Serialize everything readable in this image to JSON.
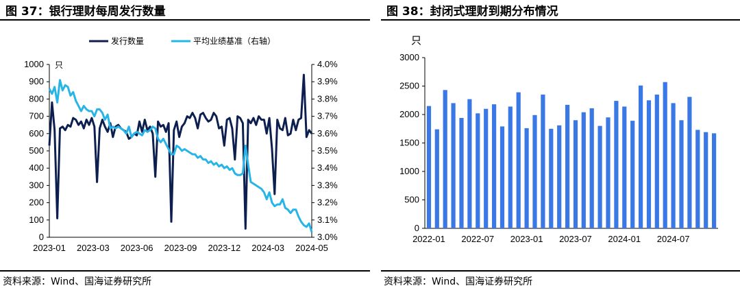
{
  "left": {
    "title": "图 37：银行理财每周发行数量",
    "source": "资料来源：Wind、国海证券研究所",
    "chart_data": {
      "type": "line",
      "ylabel": "只",
      "ylim": [
        0,
        1000
      ],
      "yticks": [
        "0",
        "100",
        "200",
        "300",
        "400",
        "500",
        "600",
        "700",
        "800",
        "900",
        "1000"
      ],
      "y2lim": [
        3.0,
        4.0
      ],
      "y2ticks": [
        "3.0%",
        "3.1%",
        "3.2%",
        "3.3%",
        "3.4%",
        "3.5%",
        "3.6%",
        "3.7%",
        "3.8%",
        "3.9%",
        "4.0%"
      ],
      "xticks": [
        "2023-01",
        "2023-03",
        "2023-06",
        "2023-09",
        "2023-12",
        "2024-03",
        "2024-05"
      ],
      "series": [
        {
          "name": "发行数量",
          "axis": "left",
          "color": "#0d1f4f",
          "values": [
            530,
            780,
            620,
            110,
            630,
            640,
            620,
            650,
            640,
            690,
            680,
            650,
            670,
            630,
            680,
            650,
            690,
            640,
            320,
            630,
            680,
            640,
            610,
            660,
            580,
            640,
            650,
            630,
            620,
            610,
            570,
            580,
            600,
            590,
            670,
            610,
            680,
            620,
            640,
            600,
            350,
            670,
            640,
            650,
            610,
            660,
            90,
            620,
            670,
            580,
            640,
            660,
            700,
            690,
            720,
            690,
            630,
            710,
            720,
            690,
            670,
            680,
            720,
            700,
            630,
            640,
            530,
            680,
            690,
            630,
            450,
            700,
            690,
            660,
            50,
            680,
            660,
            690,
            650,
            700,
            680,
            680,
            600,
            690,
            510,
            250,
            680,
            630,
            620,
            690,
            590,
            600,
            680,
            620,
            680,
            690,
            940,
            580,
            620,
            600
          ]
        },
        {
          "name": "平均业绩基准（右轴）",
          "axis": "right",
          "color": "#27b4e6",
          "values": [
            3.86,
            3.83,
            3.87,
            3.78,
            3.91,
            3.85,
            3.88,
            3.87,
            3.82,
            3.84,
            3.79,
            3.76,
            3.73,
            3.76,
            3.74,
            3.73,
            3.73,
            3.7,
            3.74,
            3.74,
            3.72,
            3.68,
            3.71,
            3.63,
            3.64,
            3.63,
            3.64,
            3.63,
            3.62,
            3.6,
            3.64,
            3.58,
            3.6,
            3.61,
            3.6,
            3.59,
            3.62,
            3.61,
            3.62,
            3.64,
            3.63,
            3.57,
            3.55,
            3.57,
            3.54,
            3.51,
            3.48,
            3.48,
            3.53,
            3.52,
            3.5,
            3.51,
            3.5,
            3.49,
            3.48,
            3.48,
            3.46,
            3.47,
            3.45,
            3.45,
            3.43,
            3.44,
            3.42,
            3.43,
            3.41,
            3.42,
            3.4,
            3.41,
            3.39,
            3.4,
            3.37,
            3.36,
            3.36,
            3.37,
            3.53,
            3.42,
            3.32,
            3.31,
            3.3,
            3.29,
            3.28,
            3.26,
            3.22,
            3.26,
            3.2,
            3.18,
            3.19,
            3.19,
            3.22,
            3.17,
            3.16,
            3.14,
            3.16,
            3.16,
            3.12,
            3.09,
            3.07,
            3.06,
            3.08,
            3.03
          ]
        }
      ]
    }
  },
  "right": {
    "title": "图 38：封闭式理财到期分布情况",
    "source": "资料来源：Wind、国海证券研究所",
    "chart_data": {
      "type": "bar",
      "ylabel": "只",
      "ylim": [
        0,
        3000
      ],
      "yticks": [
        "0",
        "500",
        "1000",
        "1500",
        "2000",
        "2500",
        "3000"
      ],
      "xticks": [
        "2022-01",
        "2022-07",
        "2023-01",
        "2023-07",
        "2024-01",
        "2024-07"
      ],
      "color": "#3a78e6",
      "categories": [
        "2022-01",
        "2022-02",
        "2022-03",
        "2022-04",
        "2022-05",
        "2022-06",
        "2022-07",
        "2022-08",
        "2022-09",
        "2022-10",
        "2022-11",
        "2022-12",
        "2023-01",
        "2023-02",
        "2023-03",
        "2023-04",
        "2023-05",
        "2023-06",
        "2023-07",
        "2023-08",
        "2023-09",
        "2023-10",
        "2023-11",
        "2023-12",
        "2024-01",
        "2024-02",
        "2024-03",
        "2024-04",
        "2024-05",
        "2024-06",
        "2024-07",
        "2024-08",
        "2024-09",
        "2024-10",
        "2024-11",
        "2024-12"
      ],
      "values": [
        2150,
        1740,
        2430,
        2200,
        1940,
        2270,
        2020,
        2100,
        2180,
        1790,
        2140,
        2390,
        1760,
        1990,
        2350,
        1750,
        1810,
        2170,
        1900,
        2040,
        2110,
        1800,
        1950,
        2240,
        2140,
        1890,
        2510,
        2250,
        2350,
        2570,
        2200,
        1900,
        2310,
        1730,
        1690,
        1670
      ]
    }
  }
}
